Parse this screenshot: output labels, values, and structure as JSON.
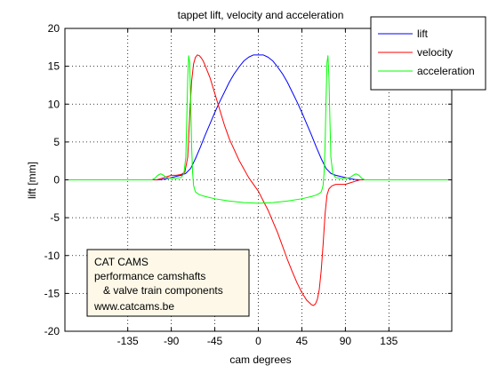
{
  "chart_data": {
    "type": "line",
    "title": "tappet lift, velocity and acceleration",
    "xlabel": "cam degrees",
    "ylabel": "lift [mm]",
    "xlim": [
      -200,
      200
    ],
    "ylim": [
      -20,
      20
    ],
    "xticks": [
      -135,
      -90,
      -45,
      0,
      45,
      90,
      135
    ],
    "yticks": [
      -20,
      -15,
      -10,
      -5,
      0,
      5,
      10,
      15,
      20
    ],
    "grid": true,
    "legend_position": "top-right",
    "series": [
      {
        "name": "lift",
        "color": "#0000ff",
        "x": [
          -200,
          -105,
          -100,
          -95,
          -90,
          -85,
          -80,
          -75,
          -70,
          -65,
          -60,
          -55,
          -50,
          -45,
          -40,
          -35,
          -30,
          -25,
          -20,
          -15,
          -10,
          -5,
          0,
          5,
          10,
          15,
          20,
          25,
          30,
          35,
          40,
          45,
          50,
          55,
          60,
          65,
          70,
          75,
          80,
          85,
          90,
          95,
          100,
          105,
          200
        ],
        "y": [
          0,
          0,
          0.05,
          0.15,
          0.3,
          0.45,
          0.6,
          0.85,
          1.5,
          2.8,
          4.3,
          5.9,
          7.4,
          8.9,
          10.3,
          11.6,
          12.9,
          14.0,
          14.9,
          15.7,
          16.2,
          16.5,
          16.5,
          16.5,
          16.2,
          15.7,
          14.9,
          14.0,
          12.9,
          11.6,
          10.3,
          8.9,
          7.4,
          5.9,
          4.3,
          2.8,
          1.5,
          0.85,
          0.6,
          0.45,
          0.3,
          0.15,
          0.05,
          0,
          0
        ]
      },
      {
        "name": "velocity",
        "color": "#ff0000",
        "x": [
          -200,
          -105,
          -100,
          -95,
          -90,
          -85,
          -80,
          -76,
          -73,
          -71,
          -69,
          -67,
          -65,
          -63,
          -61,
          -59,
          -57,
          -55,
          -50,
          -45,
          -40,
          -35,
          -30,
          -20,
          -10,
          0,
          10,
          20,
          30,
          35,
          40,
          45,
          50,
          55,
          57,
          59,
          61,
          63,
          65,
          67,
          69,
          71,
          73,
          76,
          80,
          85,
          90,
          95,
          100,
          105,
          200
        ],
        "y": [
          0,
          0,
          0.2,
          0.4,
          0.6,
          0.6,
          0.7,
          1.0,
          3.0,
          8.5,
          13.0,
          15.3,
          16.2,
          16.5,
          16.4,
          16.1,
          15.7,
          15.1,
          13.5,
          11.4,
          9.3,
          7.2,
          5.4,
          2.6,
          0.3,
          -1.5,
          -4.0,
          -7.0,
          -10.5,
          -12.1,
          -13.6,
          -14.9,
          -15.9,
          -16.5,
          -16.6,
          -16.4,
          -15.8,
          -14.5,
          -12.0,
          -8.5,
          -4.5,
          -2.0,
          -1.2,
          -0.8,
          -0.6,
          -0.6,
          -0.6,
          -0.4,
          -0.2,
          0,
          0
        ]
      },
      {
        "name": "acceleration",
        "color": "#00ff00",
        "x": [
          -200,
          -110,
          -107,
          -104,
          -101,
          -98,
          -95,
          -90,
          -85,
          -80,
          -77,
          -75,
          -74,
          -73,
          -72,
          -71,
          -70,
          -69,
          -68,
          -67,
          -66,
          -65,
          -63,
          -60,
          -55,
          -45,
          -30,
          -15,
          0,
          15,
          30,
          45,
          55,
          60,
          63,
          65,
          66,
          67,
          68,
          69,
          70,
          71,
          72,
          73,
          74,
          75,
          77,
          80,
          85,
          90,
          95,
          98,
          101,
          104,
          107,
          110,
          200
        ],
        "y": [
          0,
          0,
          0.2,
          0.6,
          0.8,
          0.6,
          0.3,
          0.2,
          0.2,
          0.3,
          0.8,
          3.0,
          8.0,
          13.5,
          16.4,
          15.5,
          10.5,
          4.5,
          1.0,
          -0.7,
          -1.2,
          -1.6,
          -1.8,
          -2.0,
          -2.2,
          -2.5,
          -2.8,
          -3.0,
          -3.1,
          -3.0,
          -2.8,
          -2.5,
          -2.2,
          -2.0,
          -1.8,
          -1.6,
          -1.2,
          -0.7,
          1.0,
          4.5,
          10.5,
          15.5,
          16.4,
          13.5,
          8.0,
          3.0,
          0.8,
          0.3,
          0.2,
          0.2,
          0.3,
          0.6,
          0.8,
          0.6,
          0.2,
          0,
          0
        ]
      }
    ],
    "annotation": {
      "lines": [
        "CAT CAMS",
        "performance camshafts",
        "   & valve train components",
        "www.catcams.be"
      ],
      "background": "#fdf8e8",
      "anchor": "lower-left"
    }
  }
}
